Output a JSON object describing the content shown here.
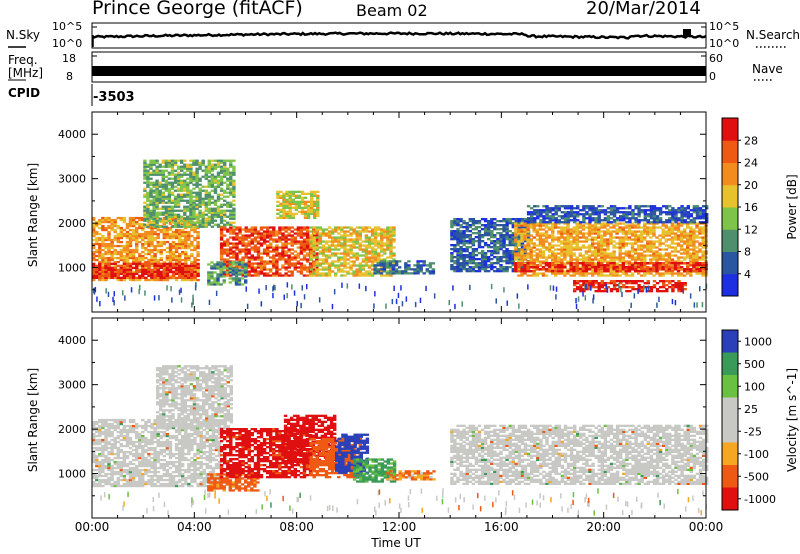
{
  "header": {
    "station": "Prince George (fitACF)",
    "beam": "Beam 02",
    "date": "20/Mar/2014"
  },
  "status_panels": {
    "nsky_label": "N.Sky",
    "nsky_ticks": [
      "10^5",
      "10^0"
    ],
    "nsearch_label": "N.Search",
    "nsearch_ticks": [
      "10^5",
      "10^0"
    ],
    "freq_label_line1": "Freq.",
    "freq_label_line2": "[MHz]",
    "freq_ticks": [
      "18",
      "8"
    ],
    "nave_label": "Nave",
    "nave_ticks": [
      "60",
      "0"
    ],
    "cpid_label": "CPID",
    "cpid_value": "-3503"
  },
  "colors": {
    "power_scale": [
      "#1d2fe0",
      "#2a55a0",
      "#4f8f6e",
      "#7fc44a",
      "#e8c22e",
      "#f28c1e",
      "#ee5a14",
      "#e01010"
    ],
    "velocity_scale": [
      "#e01010",
      "#ee5a14",
      "#f5a623",
      "#c8c8c4",
      "#c8c8c4",
      "#6ac043",
      "#3a9a58",
      "#2a3fb8"
    ],
    "ground_scatter": "#c8c8c4"
  },
  "chart_data": [
    {
      "type": "heatmap",
      "title": "",
      "quantity": "Power",
      "xlabel": "Time UT",
      "ylabel": "Slant Range [km]",
      "xlim_hours": [
        0,
        24
      ],
      "ylim_km": [
        0,
        4500
      ],
      "y_ticks": [
        "1000",
        "2000",
        "3000",
        "4000"
      ],
      "colorbar_label": "Power [dB]",
      "colorbar_ticks": [
        "4",
        "8",
        "12",
        "16",
        "20",
        "24",
        "28"
      ],
      "colorbar_range": [
        0,
        30
      ],
      "regions": [
        {
          "t0": 0.0,
          "t1": 4.2,
          "r0": 700,
          "r1": 2100,
          "v": 20
        },
        {
          "t0": 0.0,
          "t1": 4.2,
          "r0": 750,
          "r1": 1100,
          "v": 27
        },
        {
          "t0": 2.0,
          "t1": 5.5,
          "r0": 1900,
          "r1": 3400,
          "v": 12
        },
        {
          "t0": 5.0,
          "t1": 8.8,
          "r0": 800,
          "r1": 1900,
          "v": 25
        },
        {
          "t0": 4.5,
          "t1": 6.0,
          "r0": 600,
          "r1": 1100,
          "v": 10
        },
        {
          "t0": 7.2,
          "t1": 8.8,
          "r0": 2100,
          "r1": 2700,
          "v": 16
        },
        {
          "t0": 8.5,
          "t1": 11.8,
          "r0": 800,
          "r1": 1900,
          "v": 17
        },
        {
          "t0": 11.0,
          "t1": 13.3,
          "r0": 850,
          "r1": 1150,
          "v": 7
        },
        {
          "t0": 14.0,
          "t1": 17.0,
          "r0": 900,
          "r1": 2100,
          "v": 6
        },
        {
          "t0": 16.5,
          "t1": 24.0,
          "r0": 800,
          "r1": 2000,
          "v": 19
        },
        {
          "t0": 16.5,
          "t1": 24.0,
          "r0": 900,
          "r1": 1100,
          "v": 27
        },
        {
          "t0": 17.0,
          "t1": 24.0,
          "r0": 2000,
          "r1": 2400,
          "v": 5
        },
        {
          "t0": 18.8,
          "t1": 23.2,
          "r0": 450,
          "r1": 700,
          "v": 28
        }
      ]
    },
    {
      "type": "heatmap",
      "title": "",
      "quantity": "Velocity",
      "xlabel": "Time UT",
      "ylabel": "Slant Range [km]",
      "xlim_hours": [
        0,
        24
      ],
      "ylim_km": [
        0,
        4500
      ],
      "y_ticks": [
        "1000",
        "2000",
        "3000",
        "4000"
      ],
      "x_ticks": [
        "00:00",
        "04:00",
        "08:00",
        "12:00",
        "16:00",
        "20:00",
        "00:00"
      ],
      "colorbar_label": "Velocity [m s^-1]",
      "colorbar_ticks": [
        "1000",
        "500",
        "100",
        "25",
        "-25",
        "-100",
        "-500",
        "-1000"
      ],
      "colorbar_range": [
        -1000,
        1000
      ],
      "regions": [
        {
          "t0": 0.0,
          "t1": 5.0,
          "r0": 700,
          "r1": 2200,
          "v": 0,
          "ground_scatter": true
        },
        {
          "t0": 2.5,
          "t1": 5.5,
          "r0": 2000,
          "r1": 3400,
          "v": 0,
          "ground_scatter": true
        },
        {
          "t0": 4.5,
          "t1": 6.5,
          "r0": 600,
          "r1": 1000,
          "v": -200
        },
        {
          "t0": 5.0,
          "t1": 8.5,
          "r0": 900,
          "r1": 2000,
          "v": -600
        },
        {
          "t0": 7.5,
          "t1": 9.5,
          "r0": 1200,
          "r1": 2300,
          "v": -900
        },
        {
          "t0": 8.5,
          "t1": 10.5,
          "r0": 900,
          "r1": 1800,
          "v": -300
        },
        {
          "t0": 9.5,
          "t1": 10.8,
          "r0": 1000,
          "r1": 1900,
          "v": 800
        },
        {
          "t0": 10.2,
          "t1": 11.8,
          "r0": 800,
          "r1": 1300,
          "v": 150
        },
        {
          "t0": 11.5,
          "t1": 13.3,
          "r0": 850,
          "r1": 1050,
          "v": -120
        },
        {
          "t0": 14.0,
          "t1": 24.0,
          "r0": 750,
          "r1": 2100,
          "v": 0,
          "ground_scatter": true
        }
      ]
    }
  ]
}
